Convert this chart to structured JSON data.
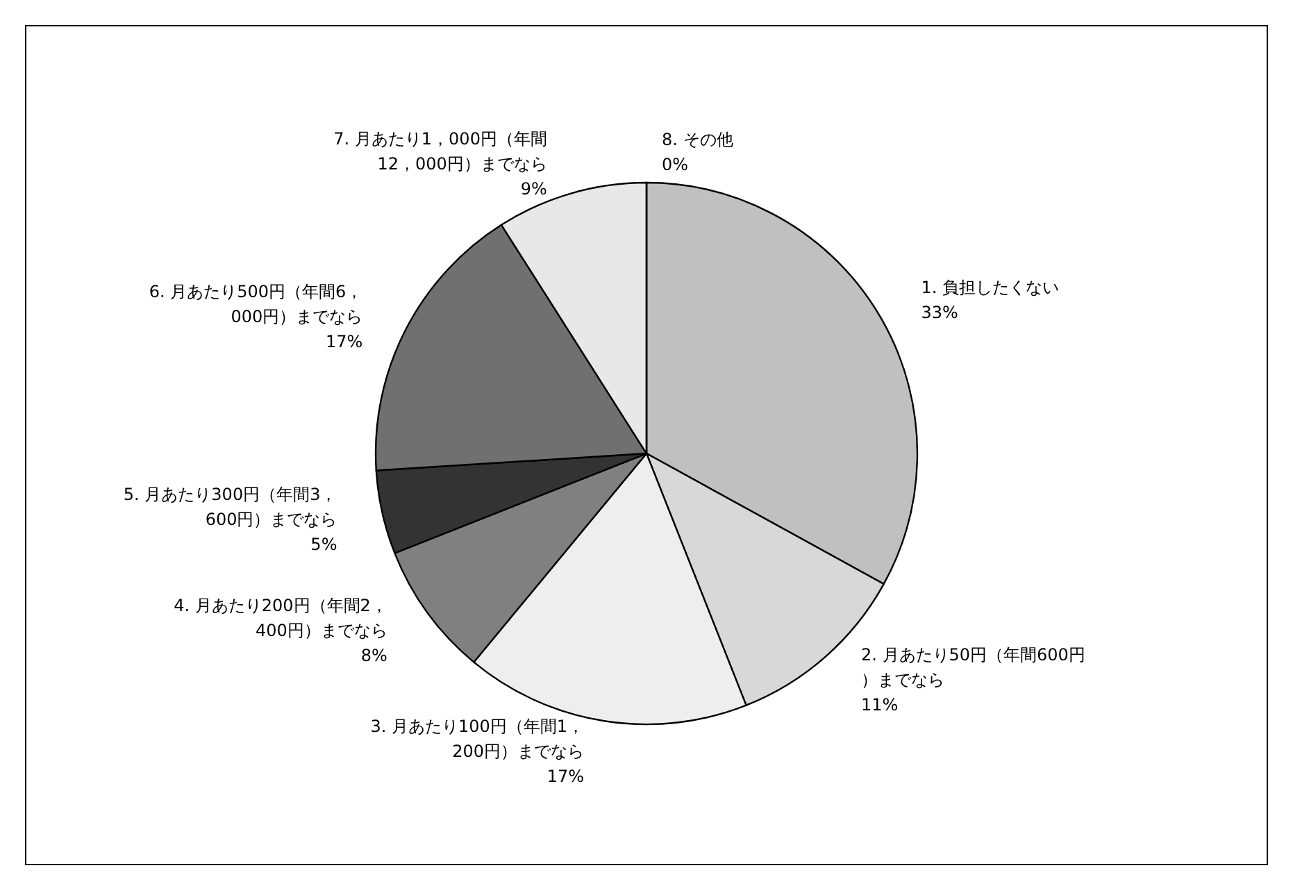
{
  "chart_data": {
    "type": "pie",
    "categories": [
      "1. 負担したくない",
      "2. 月あたり50円（年間600円）までなら",
      "3. 月あたり100円（年間1，200円）までなら",
      "4. 月あたり200円（年間2，400円）までなら",
      "5. 月あたり300円（年間3，600円）までなら",
      "6. 月あたり500円（年間6，000円）までなら",
      "7. 月あたり1，000円（年間12，000円）までなら",
      "8. その他"
    ],
    "values": [
      33,
      11,
      17,
      8,
      5,
      17,
      9,
      0
    ],
    "value_labels": [
      "33%",
      "11%",
      "17%",
      "8%",
      "5%",
      "17%",
      "9%",
      "0%"
    ],
    "colors": [
      "#c0c0c0",
      "#d8d8d8",
      "#eeeeee",
      "#808080",
      "#333333",
      "#707070",
      "#e8e8e8",
      "#ffffff"
    ],
    "legend": false
  }
}
